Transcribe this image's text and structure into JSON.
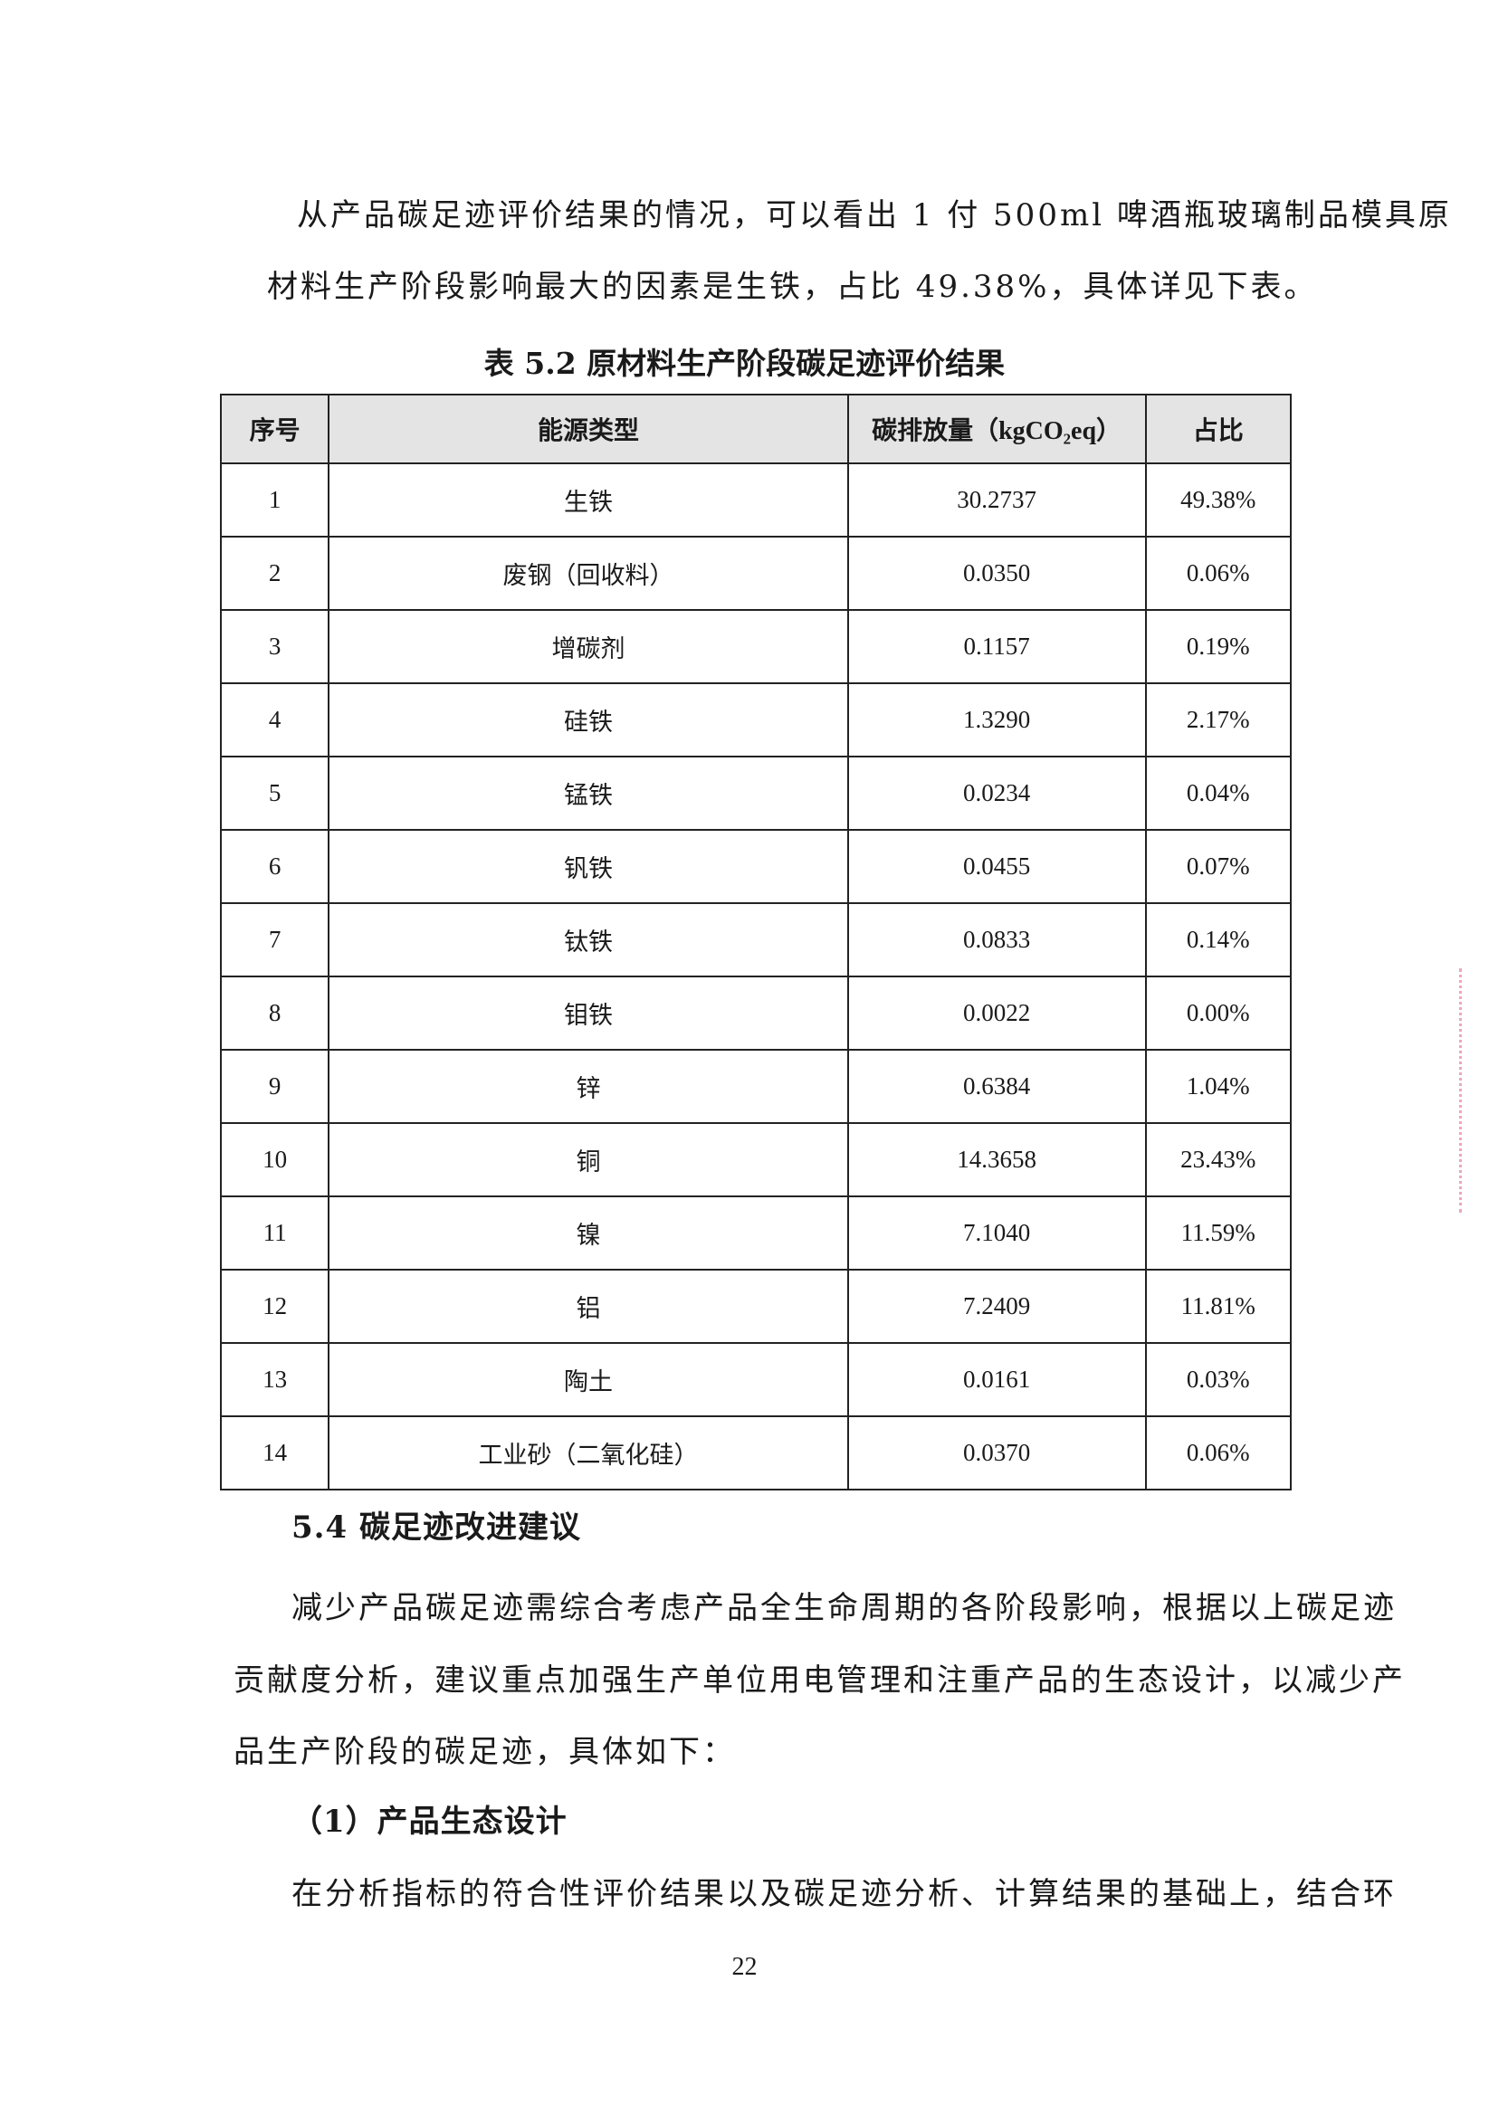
{
  "paragraph1": {
    "line1": "从产品碳足迹评价结果的情况，可以看出 1 付 500ml 啤酒瓶玻璃制品模具原",
    "line2": "材料生产阶段影响最大的因素是生铁，占比 49.38%，具体详见下表。"
  },
  "table": {
    "caption": "表 5.2  原材料生产阶段碳足迹评价结果",
    "headers": [
      "序号",
      "能源类型",
      "碳排放量（kgCO₂eq）",
      "占比"
    ],
    "rows": [
      [
        "1",
        "生铁",
        "30.2737",
        "49.38%"
      ],
      [
        "2",
        "废钢（回收料）",
        "0.0350",
        "0.06%"
      ],
      [
        "3",
        "增碳剂",
        "0.1157",
        "0.19%"
      ],
      [
        "4",
        "硅铁",
        "1.3290",
        "2.17%"
      ],
      [
        "5",
        "锰铁",
        "0.0234",
        "0.04%"
      ],
      [
        "6",
        "钒铁",
        "0.0455",
        "0.07%"
      ],
      [
        "7",
        "钛铁",
        "0.0833",
        "0.14%"
      ],
      [
        "8",
        "钼铁",
        "0.0022",
        "0.00%"
      ],
      [
        "9",
        "锌",
        "0.6384",
        "1.04%"
      ],
      [
        "10",
        "铜",
        "14.3658",
        "23.43%"
      ],
      [
        "11",
        "镍",
        "7.1040",
        "11.59%"
      ],
      [
        "12",
        "铝",
        "7.2409",
        "11.81%"
      ],
      [
        "13",
        "陶土",
        "0.0161",
        "0.03%"
      ],
      [
        "14",
        "工业砂（二氧化硅）",
        "0.0370",
        "0.06%"
      ]
    ]
  },
  "section": {
    "heading": "5.4  碳足迹改进建议",
    "para_line1": "减少产品碳足迹需综合考虑产品全生命周期的各阶段影响，根据以上碳足迹",
    "para_line2": "贡献度分析，建议重点加强生产单位用电管理和注重产品的生态设计，以减少产",
    "para_line3": "品生产阶段的碳足迹，具体如下：",
    "sub_heading": "（1）产品生态设计",
    "sub_line1": "在分析指标的符合性评价结果以及碳足迹分析、计算结果的基础上，结合环"
  },
  "page_number": "22"
}
